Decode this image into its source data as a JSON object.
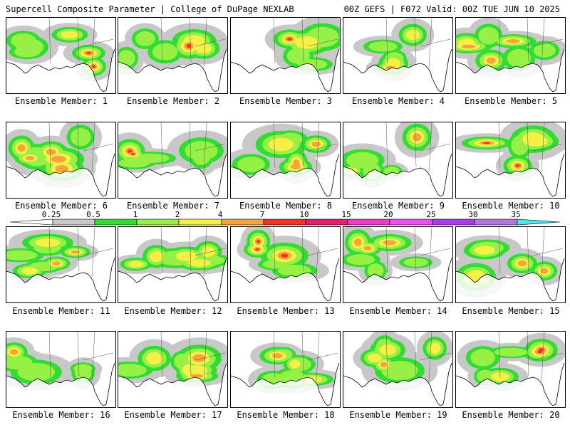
{
  "header": {
    "left": "Supercell Composite Parameter | College of DuPage NEXLAB",
    "right": "00Z GEFS | F072 Valid: 00Z TUE JUN 10 2025"
  },
  "colorbar": {
    "ticks": [
      "0.25",
      "0.5",
      "1",
      "2",
      "4",
      "7",
      "10",
      "15",
      "20",
      "25",
      "30",
      "35"
    ],
    "colors": [
      "#c8c8c8",
      "#32dc32",
      "#96f046",
      "#f5f046",
      "#f5a53c",
      "#f5322d",
      "#e61e6e",
      "#f03cc8",
      "#f050f0",
      "#aa3cf0",
      "#b478dc",
      "#50e6f0"
    ]
  },
  "members": [
    {
      "label": "Ensemble Member: 1",
      "intensity": 3
    },
    {
      "label": "Ensemble Member: 2",
      "intensity": 3
    },
    {
      "label": "Ensemble Member: 3",
      "intensity": 3
    },
    {
      "label": "Ensemble Member: 4",
      "intensity": 2
    },
    {
      "label": "Ensemble Member: 5",
      "intensity": 2
    },
    {
      "label": "Ensemble Member: 6",
      "intensity": 2
    },
    {
      "label": "Ensemble Member: 7",
      "intensity": 3
    },
    {
      "label": "Ensemble Member: 8",
      "intensity": 2
    },
    {
      "label": "Ensemble Member: 9",
      "intensity": 2
    },
    {
      "label": "Ensemble Member: 10",
      "intensity": 3
    },
    {
      "label": "Ensemble Member: 11",
      "intensity": 2
    },
    {
      "label": "Ensemble Member: 12",
      "intensity": 1
    },
    {
      "label": "Ensemble Member: 13",
      "intensity": 3
    },
    {
      "label": "Ensemble Member: 14",
      "intensity": 2
    },
    {
      "label": "Ensemble Member: 15",
      "intensity": 2
    },
    {
      "label": "Ensemble Member: 16",
      "intensity": 2
    },
    {
      "label": "Ensemble Member: 17",
      "intensity": 2
    },
    {
      "label": "Ensemble Member: 18",
      "intensity": 2
    },
    {
      "label": "Ensemble Member: 19",
      "intensity": 2
    },
    {
      "label": "Ensemble Member: 20",
      "intensity": 3
    }
  ]
}
